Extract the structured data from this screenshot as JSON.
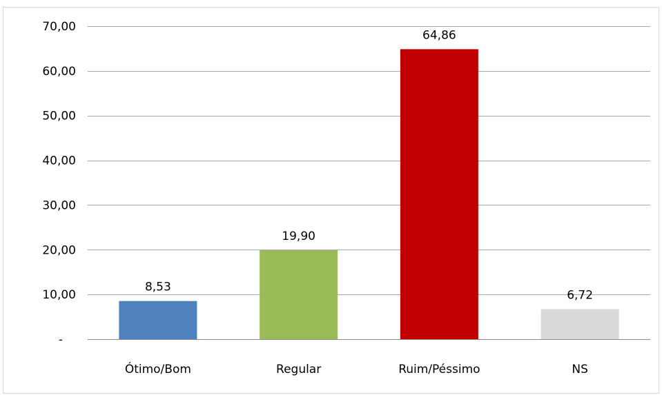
{
  "chart_data": {
    "type": "bar",
    "title": "",
    "xlabel": "",
    "ylabel": "",
    "categories": [
      "Ótimo/Bom",
      "Regular",
      "Ruim/Péssimo",
      "NS"
    ],
    "values": [
      8.53,
      19.9,
      64.86,
      6.72
    ],
    "data_labels": [
      "8,53",
      "19,90",
      "64,86",
      "6,72"
    ],
    "y_ticks": [
      0,
      10,
      20,
      30,
      40,
      50,
      60,
      70
    ],
    "y_tick_labels": [
      "-",
      "10,00",
      "20,00",
      "30,00",
      "40,00",
      "50,00",
      "60,00",
      "70,00"
    ],
    "ylim": [
      0,
      70
    ],
    "grid": true,
    "legend": "none",
    "colors": [
      "#4f81bd",
      "#9bbb59",
      "#c00000",
      "#d9d9d9"
    ]
  }
}
